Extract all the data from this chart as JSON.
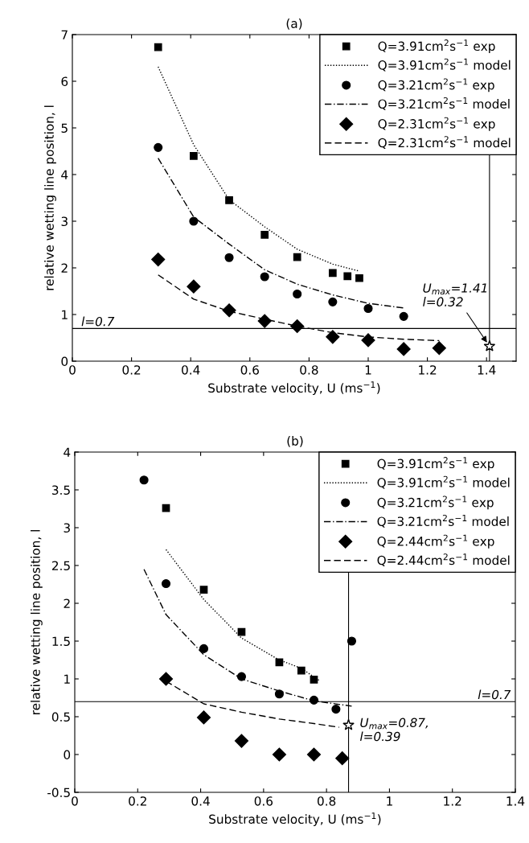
{
  "chart_data": [
    {
      "type": "scatter",
      "title": "(a)",
      "xlabel": "Substrate velocity, U (ms$^{−1}$)",
      "ylabel": "relative wetting line position, l",
      "xlim": [
        0,
        1.5
      ],
      "xticks": [
        0,
        0.2,
        0.4,
        0.6,
        0.8,
        1,
        1.2,
        1.4
      ],
      "ylim": [
        0,
        7
      ],
      "yticks": [
        0,
        1,
        2,
        3,
        4,
        5,
        6,
        7
      ],
      "grid": false,
      "legend": "top right",
      "series": [
        {
          "name": "Q=3.91cm$^{2}$s$^{−1}$ exp",
          "marker": "square",
          "color": "#000000",
          "x": [
            0.29,
            0.41,
            0.53,
            0.65,
            0.76,
            0.88,
            0.93,
            0.97
          ],
          "values": [
            6.73,
            4.4,
            3.45,
            2.71,
            2.23,
            1.89,
            1.82,
            1.78
          ]
        },
        {
          "name": "Q=3.91cm$^{2}$s$^{−1}$ model",
          "type": "line",
          "line_style": "dotted",
          "color": "#000000",
          "x": [
            0.29,
            0.41,
            0.53,
            0.65,
            0.76,
            0.88,
            0.97
          ],
          "values": [
            6.31,
            4.64,
            3.46,
            2.88,
            2.4,
            2.08,
            1.93
          ]
        },
        {
          "name": "Q=3.21cm$^{2}$s$^{−1}$ exp",
          "marker": "circle",
          "color": "#000000",
          "x": [
            0.29,
            0.41,
            0.53,
            0.65,
            0.76,
            0.88,
            1.0,
            1.12
          ],
          "values": [
            4.58,
            3.0,
            2.22,
            1.81,
            1.44,
            1.27,
            1.13,
            0.96
          ]
        },
        {
          "name": "Q=3.21cm$^{2}$s$^{−1}$ model",
          "type": "line",
          "line_style": "dashdot",
          "color": "#000000",
          "x": [
            0.29,
            0.41,
            0.53,
            0.65,
            0.76,
            0.88,
            1.0,
            1.12
          ],
          "values": [
            4.35,
            3.09,
            2.51,
            1.96,
            1.65,
            1.42,
            1.24,
            1.14
          ]
        },
        {
          "name": "Q=2.31cm$^{2}$s$^{−1}$ exp",
          "marker": "diamond",
          "color": "#000000",
          "x": [
            0.29,
            0.41,
            0.53,
            0.65,
            0.76,
            0.88,
            1.0,
            1.12,
            1.24
          ],
          "values": [
            2.18,
            1.6,
            1.09,
            0.86,
            0.75,
            0.52,
            0.45,
            0.26,
            0.28
          ]
        },
        {
          "name": "Q=2.31cm$^{2}$s$^{−1}$ model",
          "type": "line",
          "line_style": "dashed",
          "color": "#000000",
          "x": [
            0.29,
            0.41,
            0.53,
            0.65,
            0.76,
            0.88,
            1.0,
            1.12,
            1.24
          ],
          "values": [
            1.85,
            1.33,
            1.07,
            0.9,
            0.75,
            0.61,
            0.52,
            0.47,
            0.44
          ]
        },
        {
          "marker": "star",
          "color": "#000000",
          "x": [
            1.41
          ],
          "values": [
            0.32
          ]
        }
      ],
      "ref_lines": [
        {
          "axis": "y",
          "value": 0.7,
          "label": "l=0.7"
        },
        {
          "axis": "x",
          "value": 1.41
        }
      ],
      "annotations": [
        {
          "text": "U$_{max}$=1.41\nl=0.32",
          "x": 1.41,
          "y": 0.32
        }
      ]
    },
    {
      "type": "scatter",
      "title": "(b)",
      "xlabel": "Substrate velocity, U (ms$^{−1}$)",
      "ylabel": "relative wetting line position, l",
      "xlim": [
        0,
        1.4
      ],
      "xticks": [
        0,
        0.2,
        0.4,
        0.6,
        0.8,
        1,
        1.2,
        1.4
      ],
      "ylim": [
        -0.5,
        4
      ],
      "yticks": [
        -0.5,
        0,
        0.5,
        1,
        1.5,
        2,
        2.5,
        3,
        3.5,
        4
      ],
      "grid": false,
      "legend": "top right",
      "series": [
        {
          "name": "Q=3.91cm$^{2}$s$^{−1}$ exp",
          "marker": "square",
          "color": "#000000",
          "x": [
            0.29,
            0.41,
            0.53,
            0.65,
            0.72,
            0.76
          ],
          "values": [
            3.26,
            2.18,
            1.62,
            1.22,
            1.11,
            0.99
          ]
        },
        {
          "name": "Q=3.91cm$^{2}$s$^{−1}$ model",
          "type": "line",
          "line_style": "dotted",
          "color": "#000000",
          "x": [
            0.29,
            0.41,
            0.53,
            0.65,
            0.72,
            0.78
          ],
          "values": [
            2.71,
            2.05,
            1.54,
            1.25,
            1.14,
            0.97
          ]
        },
        {
          "name": "Q=3.21cm$^{2}$s$^{−1}$ exp",
          "marker": "circle",
          "color": "#000000",
          "x": [
            0.22,
            0.29,
            0.41,
            0.53,
            0.65,
            0.76,
            0.83,
            0.88
          ],
          "values": [
            3.63,
            2.26,
            1.4,
            1.03,
            0.8,
            0.72,
            0.6,
            1.5
          ]
        },
        {
          "name": "Q=3.21cm$^{2}$s$^{−1}$ model",
          "type": "line",
          "line_style": "dashdot",
          "color": "#000000",
          "x": [
            0.22,
            0.29,
            0.41,
            0.53,
            0.65,
            0.76,
            0.88
          ],
          "values": [
            2.45,
            1.85,
            1.32,
            1.0,
            0.84,
            0.71,
            0.64
          ]
        },
        {
          "name": "Q=2.44cm$^{2}$s$^{−1}$ exp",
          "marker": "diamond",
          "color": "#000000",
          "x": [
            0.29,
            0.41,
            0.53,
            0.65,
            0.76,
            0.85
          ],
          "values": [
            1.0,
            0.49,
            0.18,
            0.0,
            0.0,
            -0.05
          ]
        },
        {
          "name": "Q=2.44cm$^{2}$s$^{−1}$ model",
          "type": "line",
          "line_style": "dashed",
          "color": "#000000",
          "x": [
            0.29,
            0.41,
            0.53,
            0.65,
            0.76,
            0.84
          ],
          "values": [
            0.97,
            0.67,
            0.56,
            0.47,
            0.41,
            0.36
          ]
        },
        {
          "marker": "star",
          "color": "#000000",
          "x": [
            0.87
          ],
          "values": [
            0.39
          ]
        }
      ],
      "ref_lines": [
        {
          "axis": "y",
          "value": 0.7,
          "label": "l=0.7"
        },
        {
          "axis": "x",
          "value": 0.87
        }
      ],
      "annotations": [
        {
          "text": "U$_{max}$=0.87,\nl=0.39",
          "x": 0.87,
          "y": 0.39
        }
      ]
    }
  ]
}
